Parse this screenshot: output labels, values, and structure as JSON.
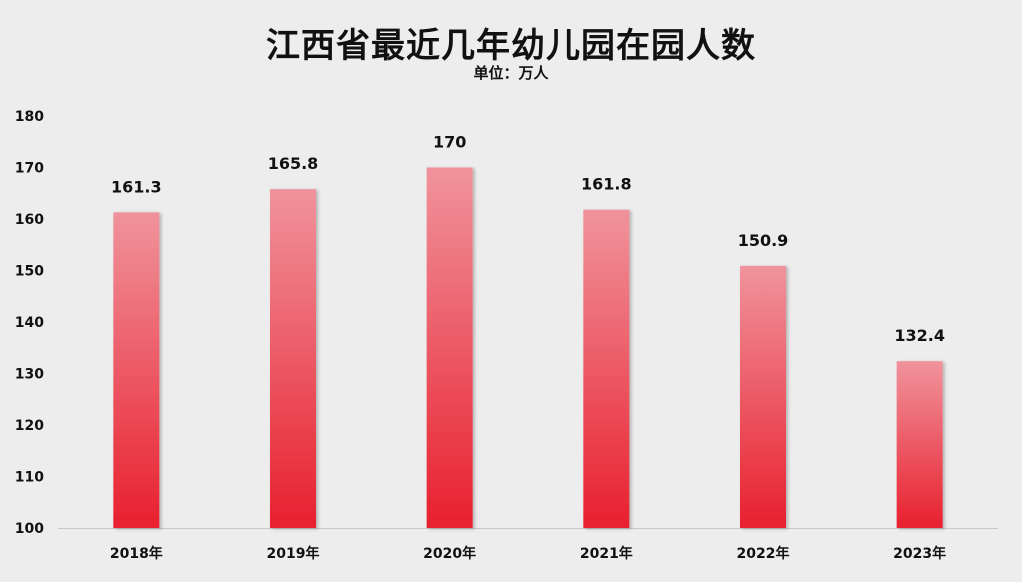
{
  "chart_data": {
    "type": "bar",
    "title": "江西省最近几年幼儿园在园人数",
    "subtitle": "单位：万人",
    "categories": [
      "2018年",
      "2019年",
      "2020年",
      "2021年",
      "2022年",
      "2023年"
    ],
    "values": [
      161.3,
      165.8,
      170,
      161.8,
      150.9,
      132.4
    ],
    "value_labels": [
      "161.3",
      "165.8",
      "170",
      "161.8",
      "150.9",
      "132.4"
    ],
    "ylim": [
      100,
      180
    ],
    "yticks": [
      100,
      110,
      120,
      130,
      140,
      150,
      160,
      170,
      180
    ],
    "grid": false,
    "colors": {
      "bar_top": "#f0939c",
      "bar_bottom": "#e8202e",
      "background": "#ededed"
    }
  }
}
